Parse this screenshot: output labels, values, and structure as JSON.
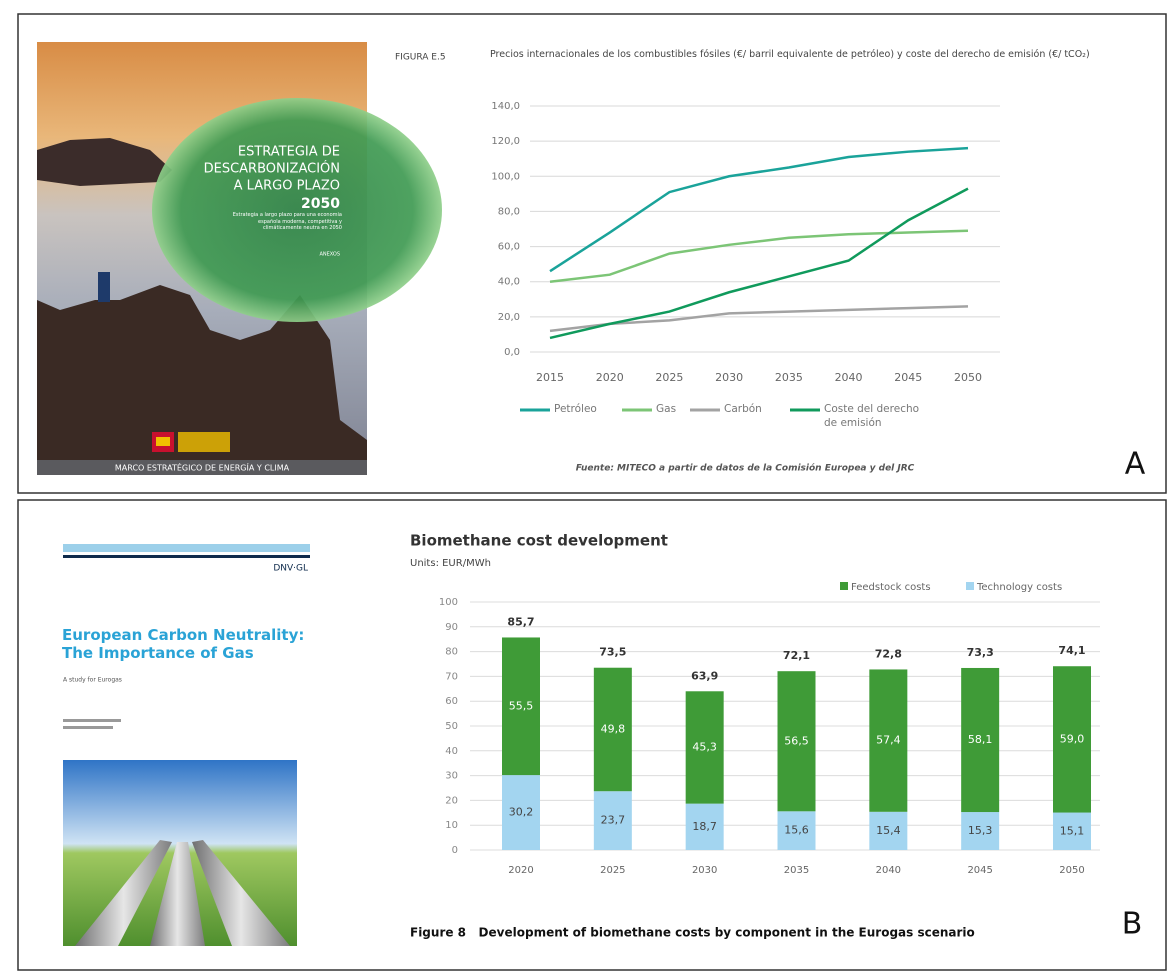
{
  "chart_data": [
    {
      "type": "line",
      "figure_label": "FIGURA E.5",
      "title": "Precios internacionales de los combustibles fósiles (€/ barril equivalente de petróleo) y coste del derecho de emisión (€/ tCO₂)",
      "categories": [
        "2015",
        "2020",
        "2025",
        "2030",
        "2035",
        "2040",
        "2045",
        "2050"
      ],
      "series": [
        {
          "name": "Petróleo",
          "color": "#1aa39a",
          "values": [
            46,
            68,
            91,
            100,
            105,
            111,
            114,
            116
          ]
        },
        {
          "name": "Gas",
          "color": "#7cc576",
          "values": [
            40,
            44,
            56,
            61,
            65,
            67,
            68,
            69
          ]
        },
        {
          "name": "Carbón",
          "color": "#a3a3a3",
          "values": [
            12,
            16,
            18,
            22,
            23,
            24,
            25,
            26
          ]
        },
        {
          "name": "Coste del derecho de emisión",
          "color": "#109a5c",
          "values": [
            8,
            16,
            23,
            34,
            43,
            52,
            75,
            93
          ]
        }
      ],
      "ylim": [
        0,
        140
      ],
      "yticks": [
        {
          "value": 0,
          "label": "0,0"
        },
        {
          "value": 20,
          "label": "20,0"
        },
        {
          "value": 40,
          "label": "40,0"
        },
        {
          "value": 60,
          "label": "60,0"
        },
        {
          "value": 80,
          "label": "80,0"
        },
        {
          "value": 100,
          "label": "100,0"
        },
        {
          "value": 120,
          "label": "120,0"
        },
        {
          "value": 140,
          "label": "140,0"
        }
      ],
      "grid": true,
      "legend": "bottom",
      "source": "Fuente: MITECO a partir de datos de la Comisión Europea y del JRC"
    },
    {
      "type": "stacked_bar",
      "title": "Biomethane cost development",
      "subtitle": "Units: EUR/MWh",
      "categories": [
        "2020",
        "2025",
        "2030",
        "2035",
        "2040",
        "2045",
        "2050"
      ],
      "series": [
        {
          "name": "Technology costs",
          "color": "#a3d5f0",
          "values": [
            30.2,
            23.7,
            18.7,
            15.6,
            15.4,
            15.3,
            15.1
          ],
          "value_labels": [
            "30,2",
            "23,7",
            "18,7",
            "15,6",
            "15,4",
            "15,3",
            "15,1"
          ]
        },
        {
          "name": "Feedstock costs",
          "color": "#3f9b37",
          "values": [
            55.5,
            49.8,
            45.3,
            56.5,
            57.4,
            58.1,
            59.0
          ],
          "value_labels": [
            "55,5",
            "49,8",
            "45,3",
            "56,5",
            "57,4",
            "58,1",
            "59,0"
          ]
        }
      ],
      "totals": {
        "values": [
          85.7,
          73.5,
          63.9,
          72.1,
          72.8,
          73.3,
          74.1
        ],
        "value_labels": [
          "85,7",
          "73,5",
          "63,9",
          "72,1",
          "72,8",
          "73,3",
          "74,1"
        ]
      },
      "ylim": [
        0,
        100
      ],
      "yticks": [
        0,
        10,
        20,
        30,
        40,
        50,
        60,
        70,
        80,
        90,
        100
      ],
      "grid": true,
      "legend": "top-right",
      "caption": "Figure 8   Development of biomethane costs by component in the Eurogas scenario"
    }
  ],
  "panel_labels": [
    "A",
    "B"
  ],
  "cover_a": {
    "title_lines": [
      "ESTRATEGIA DE",
      "DESCARBONIZACIÓN",
      "A LARGO PLAZO",
      "2050"
    ],
    "description": "Estrategia a largo plazo para una economía española moderna, competitiva y climáticamente neutra en 2050",
    "annex": "ANEXOS",
    "footer": "MARCO ESTRATÉGICO DE ENERGÍA Y CLIMA"
  },
  "cover_b": {
    "brand": "DNV·GL",
    "title": "European Carbon Neutrality: The Importance of Gas",
    "subtitle": "A study for Eurogas"
  }
}
